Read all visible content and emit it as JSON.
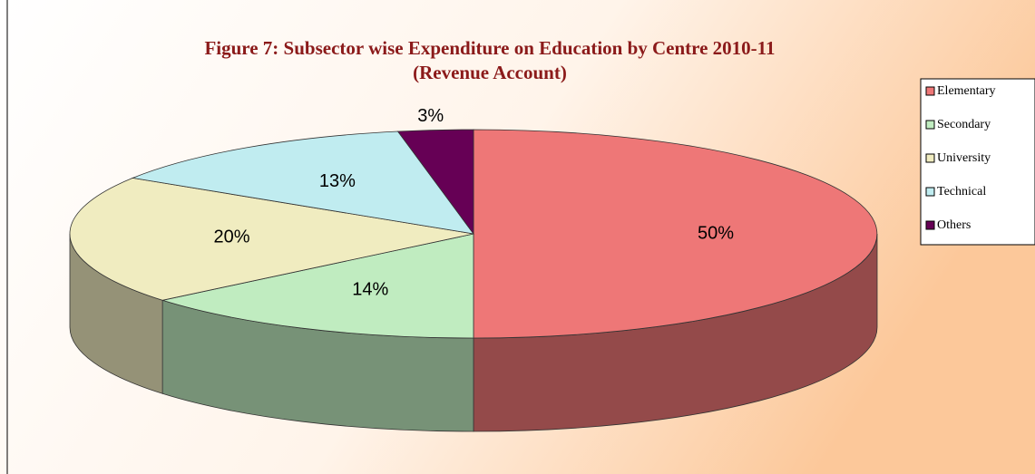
{
  "chart_data": {
    "type": "pie3d",
    "title": "Figure 7: Subsector wise Expenditure on Education by Centre 2010-11",
    "subtitle": "(Revenue Account)",
    "categories": [
      "Elementary",
      "Secondary",
      "University",
      "Technical",
      "Others"
    ],
    "values": [
      50,
      14,
      20,
      13,
      3
    ],
    "value_labels": [
      "50%",
      "14%",
      "20%",
      "13%",
      "3%"
    ],
    "colors": [
      "#ee7777",
      "#c0ecc0",
      "#f0ecc0",
      "#c0ecf0",
      "#660055"
    ],
    "legend": "right"
  }
}
